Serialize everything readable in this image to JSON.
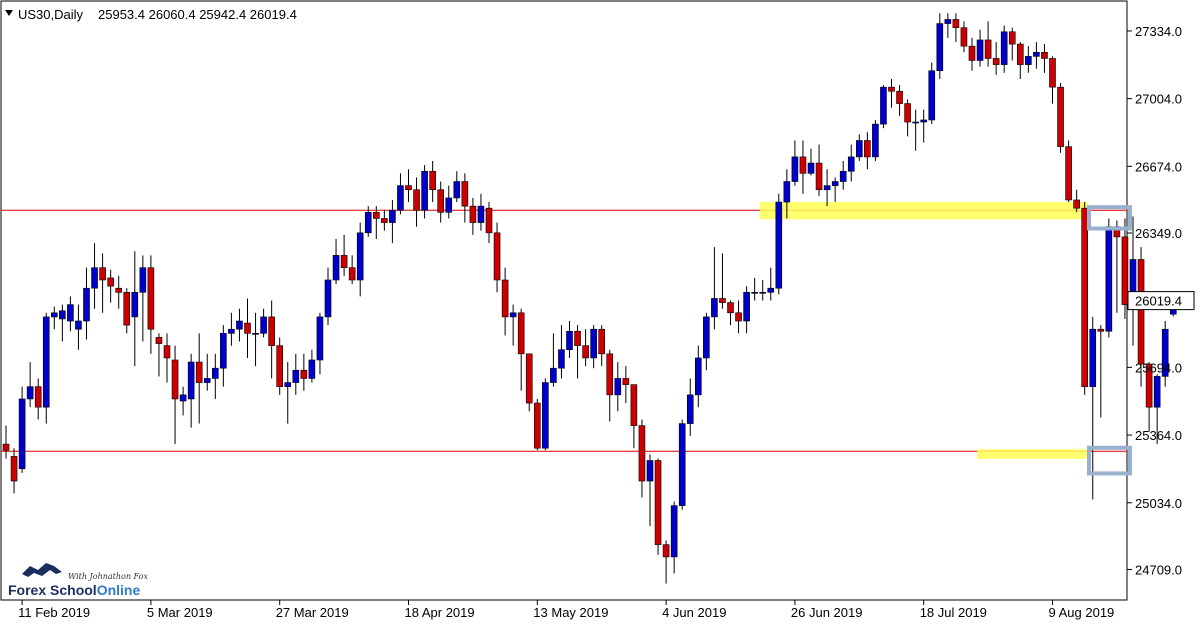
{
  "header": {
    "symbol_timeframe": "US30,Daily",
    "ohlc": "25953.4 26060.4 25942.4 26019.4"
  },
  "logo": {
    "tagline": "With Johnathon Fox",
    "brand_part1": "Forex School",
    "brand_part2": "Online"
  },
  "colors": {
    "bull": "#0000cc",
    "bear": "#cc0000",
    "level_line": "#dd0000",
    "zone_fill": "#ffff55",
    "marker_stroke": "#9ab0cf"
  },
  "chart_data": {
    "type": "candlestick",
    "symbol": "US30",
    "timeframe": "Daily",
    "ylim": [
      24560,
      27480
    ],
    "yticks": [
      24709.0,
      25034.0,
      25364.0,
      25694.0,
      26019.4,
      26349.0,
      26674.0,
      27004.0,
      27334.0
    ],
    "ytick_labels": [
      "24709.0",
      "25034.0",
      "25364.0",
      "25694.0",
      "26019.4",
      "26349.0",
      "26674.0",
      "27004.0",
      "27334.0"
    ],
    "current_price": 26019.4,
    "xtick_labels": [
      {
        "index": 2,
        "label": "11 Feb 2019"
      },
      {
        "index": 18,
        "label": "5 Mar 2019"
      },
      {
        "index": 34,
        "label": "27 Mar 2019"
      },
      {
        "index": 50,
        "label": "18 Apr 2019"
      },
      {
        "index": 66,
        "label": "13 May 2019"
      },
      {
        "index": 82,
        "label": "4 Jun 2019"
      },
      {
        "index": 98,
        "label": "26 Jun 2019"
      },
      {
        "index": 114,
        "label": "18 Jul 2019"
      },
      {
        "index": 130,
        "label": "9 Aug 2019"
      }
    ],
    "horizontal_levels": [
      26460,
      25285
    ],
    "zones": [
      {
        "start_index": 94,
        "end_index": 134,
        "from": 26416,
        "to": 26500
      },
      {
        "start_index": 121,
        "end_index": 134,
        "from": 25248,
        "to": 25295
      }
    ],
    "markers": [
      {
        "price_low": 26371,
        "price_high": 26475
      },
      {
        "price_low": 25177,
        "price_high": 25302
      }
    ],
    "candles": [
      [
        25320,
        25290,
        25410,
        25250
      ],
      [
        25260,
        25140,
        25300,
        25080
      ],
      [
        25200,
        25540,
        25600,
        25180
      ],
      [
        25540,
        25600,
        25720,
        25500
      ],
      [
        25600,
        25500,
        25640,
        25440
      ],
      [
        25500,
        25940,
        25960,
        25420
      ],
      [
        25940,
        25960,
        25990,
        25880
      ],
      [
        25930,
        25970,
        26000,
        25820
      ],
      [
        25920,
        26000,
        26040,
        25870
      ],
      [
        25880,
        25920,
        26000,
        25780
      ],
      [
        25920,
        26080,
        26180,
        25830
      ],
      [
        26080,
        26180,
        26300,
        25980
      ],
      [
        26180,
        26120,
        26250,
        25960
      ],
      [
        26130,
        26090,
        26170,
        26010
      ],
      [
        26080,
        26060,
        26140,
        25980
      ],
      [
        26060,
        25900,
        26080,
        25860
      ],
      [
        25940,
        26060,
        26260,
        25700
      ],
      [
        26060,
        26180,
        26240,
        25820
      ],
      [
        26180,
        25880,
        26240,
        25760
      ],
      [
        25840,
        25810,
        25860,
        25650
      ],
      [
        25800,
        25740,
        25860,
        25620
      ],
      [
        25730,
        25540,
        25800,
        25320
      ],
      [
        25530,
        25560,
        25600,
        25460
      ],
      [
        25540,
        25720,
        25760,
        25400
      ],
      [
        25720,
        25620,
        25860,
        25420
      ],
      [
        25620,
        25640,
        25760,
        25580
      ],
      [
        25640,
        25690,
        25760,
        25540
      ],
      [
        25690,
        25860,
        25900,
        25600
      ],
      [
        25860,
        25880,
        25960,
        25800
      ],
      [
        25880,
        25920,
        25980,
        25820
      ],
      [
        25910,
        25860,
        26030,
        25740
      ],
      [
        25860,
        25860,
        25960,
        25700
      ],
      [
        25860,
        25940,
        25980,
        25840
      ],
      [
        25940,
        25800,
        26020,
        25640
      ],
      [
        25800,
        25600,
        25840,
        25560
      ],
      [
        25600,
        25620,
        25720,
        25420
      ],
      [
        25620,
        25680,
        25760,
        25560
      ],
      [
        25680,
        25640,
        25760,
        25580
      ],
      [
        25640,
        25730,
        25780,
        25620
      ],
      [
        25730,
        25940,
        25960,
        25660
      ],
      [
        25940,
        26120,
        26180,
        25900
      ],
      [
        26120,
        26240,
        26320,
        26100
      ],
      [
        26240,
        26180,
        26340,
        26140
      ],
      [
        26180,
        26120,
        26240,
        26100
      ],
      [
        26120,
        26350,
        26400,
        26040
      ],
      [
        26350,
        26450,
        26480,
        26330
      ],
      [
        26450,
        26420,
        26480,
        26320
      ],
      [
        26420,
        26400,
        26460,
        26360
      ],
      [
        26400,
        26460,
        26510,
        26300
      ],
      [
        26460,
        26580,
        26640,
        26440
      ],
      [
        26580,
        26560,
        26660,
        26500
      ],
      [
        26560,
        26460,
        26620,
        26380
      ],
      [
        26460,
        26650,
        26680,
        26420
      ],
      [
        26650,
        26560,
        26700,
        26500
      ],
      [
        26560,
        26450,
        26600,
        26400
      ],
      [
        26450,
        26520,
        26580,
        26420
      ],
      [
        26520,
        26600,
        26650,
        26500
      ],
      [
        26600,
        26480,
        26640,
        26400
      ],
      [
        26480,
        26400,
        26520,
        26340
      ],
      [
        26400,
        26480,
        26540,
        26360
      ],
      [
        26470,
        26350,
        26500,
        26300
      ],
      [
        26350,
        26120,
        26400,
        26060
      ],
      [
        26120,
        25940,
        26180,
        25850
      ],
      [
        25940,
        25960,
        26000,
        25800
      ],
      [
        25960,
        25760,
        25980,
        25580
      ],
      [
        25760,
        25520,
        25760,
        25480
      ],
      [
        25520,
        25300,
        25540,
        25290
      ],
      [
        25300,
        25620,
        25640,
        25290
      ],
      [
        25620,
        25690,
        25860,
        25600
      ],
      [
        25690,
        25780,
        25900,
        25640
      ],
      [
        25780,
        25870,
        25920,
        25740
      ],
      [
        25870,
        25800,
        25900,
        25640
      ],
      [
        25800,
        25740,
        25880,
        25700
      ],
      [
        25740,
        25880,
        25900,
        25690
      ],
      [
        25880,
        25760,
        25900,
        25700
      ],
      [
        25760,
        25560,
        25780,
        25430
      ],
      [
        25560,
        25640,
        25720,
        25480
      ],
      [
        25640,
        25610,
        25700,
        25520
      ],
      [
        25610,
        25410,
        25610,
        25300
      ],
      [
        25410,
        25140,
        25440,
        25060
      ],
      [
        25140,
        25240,
        25270,
        24920
      ],
      [
        25240,
        24830,
        25250,
        24780
      ],
      [
        24830,
        24770,
        24850,
        24640
      ],
      [
        24770,
        25020,
        25040,
        24690
      ],
      [
        25020,
        25420,
        25440,
        25000
      ],
      [
        25420,
        25560,
        25640,
        25360
      ],
      [
        25560,
        25740,
        25800,
        25500
      ],
      [
        25740,
        25940,
        25960,
        25680
      ],
      [
        25940,
        26030,
        26280,
        25880
      ],
      [
        26030,
        26010,
        26250,
        25980
      ],
      [
        26010,
        25960,
        26020,
        25900
      ],
      [
        25960,
        25920,
        26020,
        25860
      ],
      [
        25920,
        26060,
        26090,
        25860
      ],
      [
        26060,
        26060,
        26130,
        26020
      ],
      [
        26060,
        26060,
        26120,
        26020
      ],
      [
        26060,
        26080,
        26180,
        26020
      ],
      [
        26080,
        26500,
        26540,
        26050
      ],
      [
        26500,
        26600,
        26660,
        26420
      ],
      [
        26600,
        26720,
        26800,
        26580
      ],
      [
        26720,
        26640,
        26800,
        26540
      ],
      [
        26640,
        26690,
        26760,
        26630
      ],
      [
        26690,
        26560,
        26780,
        26530
      ],
      [
        26560,
        26580,
        26660,
        26480
      ],
      [
        26580,
        26600,
        26620,
        26500
      ],
      [
        26600,
        26650,
        26700,
        26560
      ],
      [
        26650,
        26720,
        26780,
        26600
      ],
      [
        26720,
        26800,
        26830,
        26700
      ],
      [
        26800,
        26720,
        26840,
        26660
      ],
      [
        26720,
        26880,
        26900,
        26700
      ],
      [
        26880,
        27060,
        27070,
        26860
      ],
      [
        27060,
        27040,
        27100,
        26960
      ],
      [
        27040,
        26980,
        27070,
        26920
      ],
      [
        26980,
        26890,
        27000,
        26820
      ],
      [
        26890,
        26890,
        26950,
        26750
      ],
      [
        26890,
        26900,
        26950,
        26790
      ],
      [
        26900,
        27140,
        27180,
        26880
      ],
      [
        27140,
        27370,
        27420,
        27100
      ],
      [
        27370,
        27390,
        27420,
        27300
      ],
      [
        27390,
        27350,
        27420,
        27280
      ],
      [
        27350,
        27260,
        27380,
        27230
      ],
      [
        27260,
        27190,
        27300,
        27140
      ],
      [
        27190,
        27290,
        27340,
        27160
      ],
      [
        27290,
        27200,
        27380,
        27160
      ],
      [
        27200,
        27170,
        27280,
        27120
      ],
      [
        27170,
        27330,
        27360,
        27130
      ],
      [
        27330,
        27270,
        27350,
        27190
      ],
      [
        27270,
        27170,
        27280,
        27100
      ],
      [
        27170,
        27210,
        27260,
        27130
      ],
      [
        27210,
        27230,
        27280,
        27150
      ],
      [
        27230,
        27200,
        27270,
        27130
      ],
      [
        27200,
        27060,
        27210,
        26980
      ],
      [
        27060,
        26770,
        27080,
        26740
      ],
      [
        26770,
        26510,
        26800,
        26500
      ],
      [
        26510,
        26470,
        26560,
        26450
      ],
      [
        26470,
        25600,
        26500,
        25560
      ],
      [
        25600,
        25880,
        25940,
        25050
      ],
      [
        25880,
        25870,
        25900,
        25450
      ],
      [
        25870,
        26380,
        26420,
        25840
      ],
      [
        26380,
        26330,
        26410,
        25960
      ],
      [
        26330,
        26000,
        26420,
        25930
      ],
      [
        26000,
        26220,
        26430,
        25800
      ],
      [
        26220,
        25710,
        26280,
        25600
      ],
      [
        25710,
        25500,
        25720,
        25380
      ],
      [
        25500,
        25650,
        25660,
        25320
      ],
      [
        25650,
        25880,
        25920,
        25600
      ],
      [
        25953.4,
        26019.4,
        26060.4,
        25942.4
      ]
    ]
  }
}
